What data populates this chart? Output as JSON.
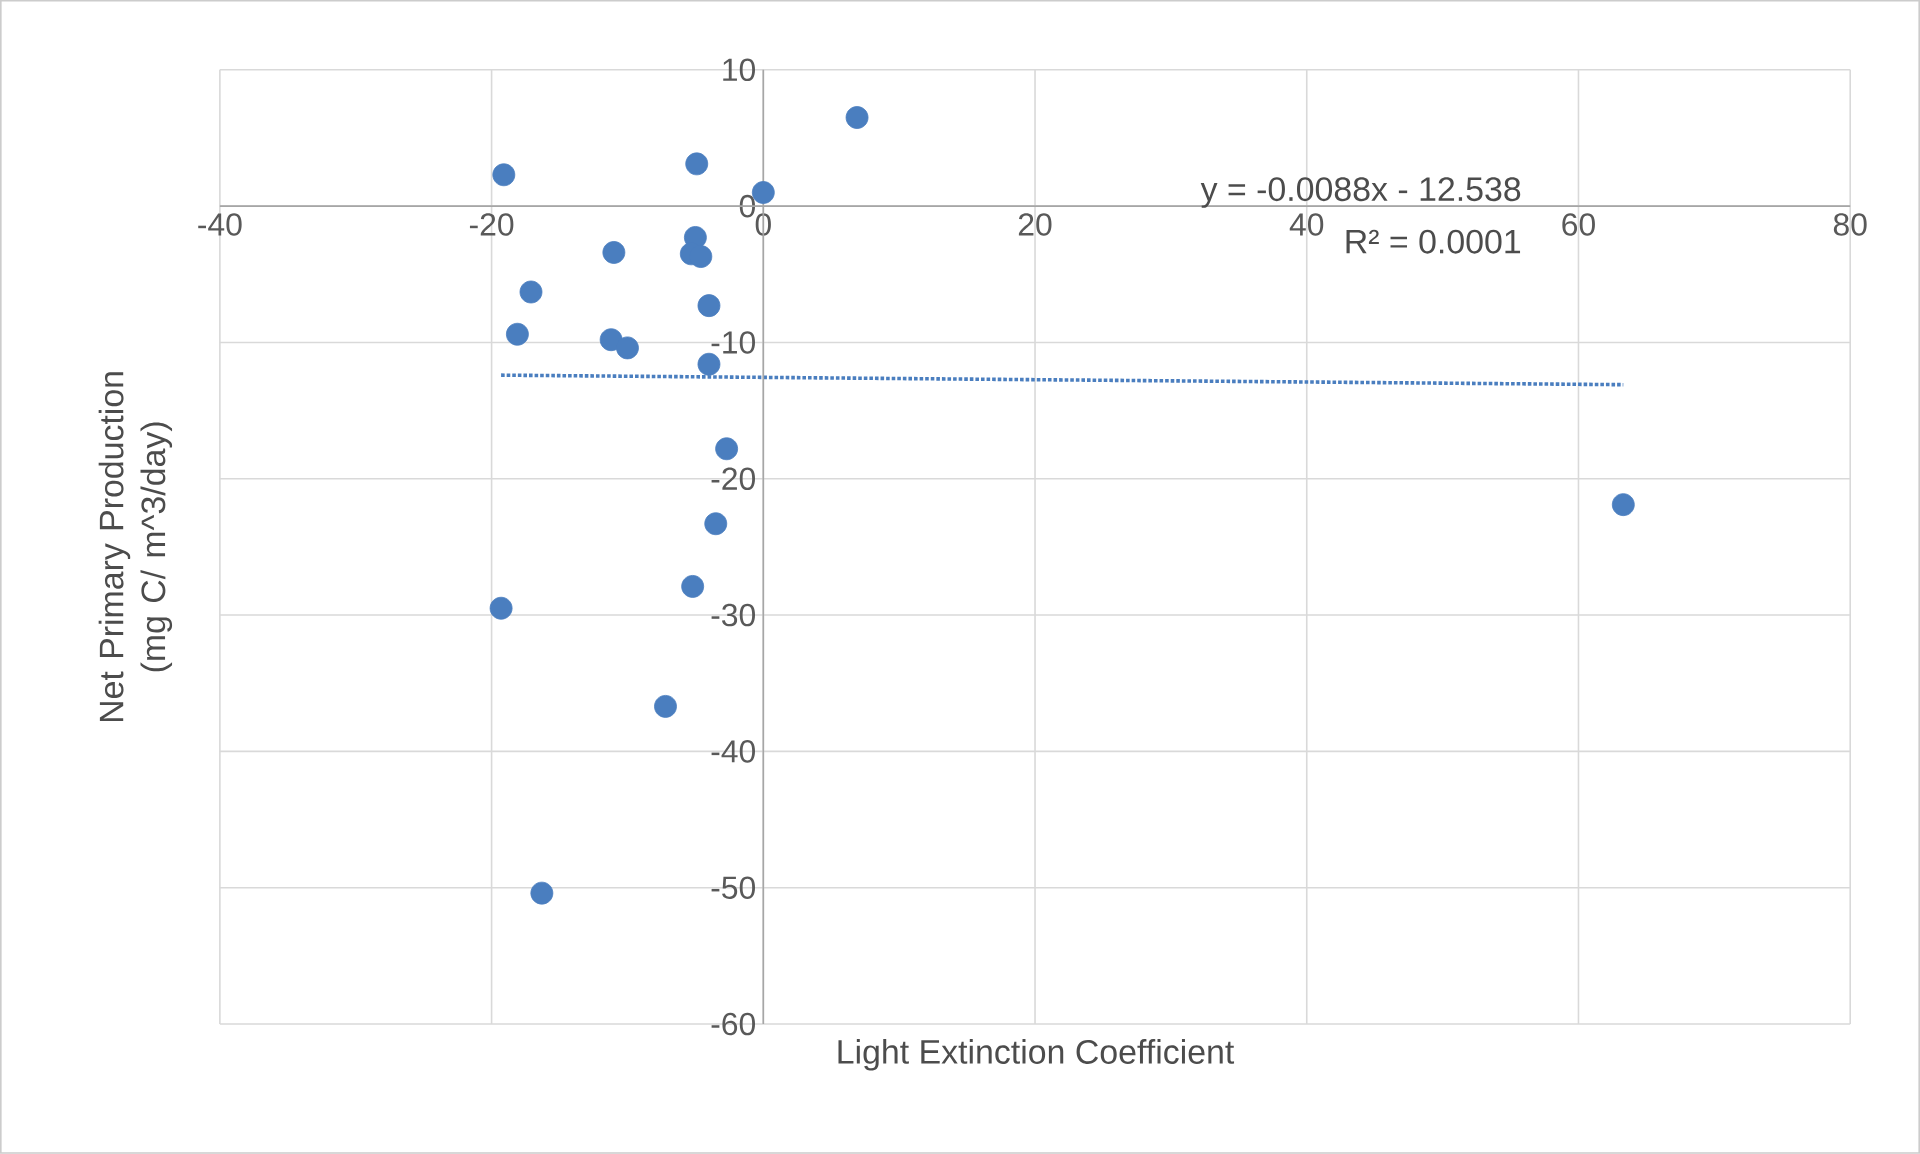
{
  "chart_data": {
    "type": "scatter",
    "xlabel": "Light Extinction Coefficient",
    "ylabel": "Net Primary Production (mg C/ m^3/day)",
    "xlim": [
      -40,
      80
    ],
    "xticks": [
      -40,
      -20,
      0,
      20,
      40,
      60,
      80
    ],
    "ylim": [
      -60,
      10
    ],
    "yticks": [
      -60,
      -50,
      -40,
      -30,
      -20,
      -10,
      0,
      10
    ],
    "grid": true,
    "series": [
      {
        "color": "#4a7ebf",
        "marker": "circle",
        "x": [
          -19.1,
          -4.9,
          0,
          6.9,
          -11.0,
          -5.0,
          -5.3,
          -4.6,
          -17.1,
          -4.0,
          -18.1,
          -11.2,
          -10.0,
          -4.0,
          -2.7,
          -3.5,
          63.3,
          -19.3,
          -5.2,
          -7.2,
          -16.3
        ],
        "values": [
          2.3,
          3.1,
          1.0,
          6.5,
          -3.4,
          -2.3,
          -3.5,
          -3.7,
          -6.3,
          -7.3,
          -9.4,
          -9.8,
          -10.4,
          -11.6,
          -17.8,
          -23.3,
          -21.9,
          -29.5,
          -27.9,
          -36.7,
          -50.4
        ]
      },
      {
        "type": "line",
        "color": "#4a7ebf",
        "line_style": "dotted",
        "marker": "none",
        "x": [
          -19.3,
          63.3
        ],
        "values": [
          -12.4,
          -13.1
        ]
      }
    ],
    "annotations": [
      "y = -0.0088x - 12.538",
      "R² = 0.0001"
    ]
  }
}
